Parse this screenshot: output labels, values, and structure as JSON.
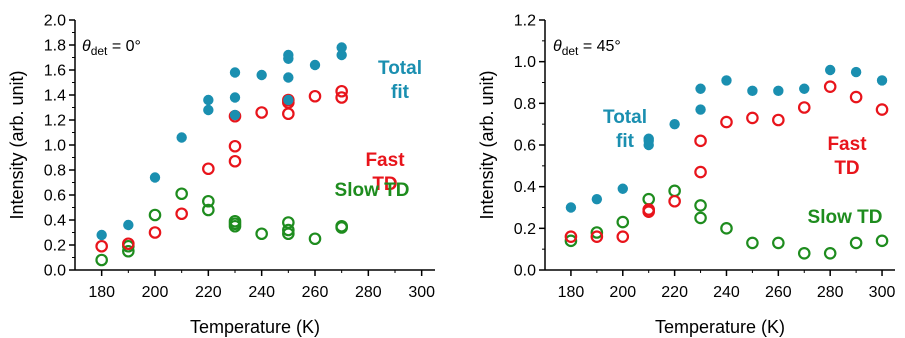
{
  "chart_data": [
    {
      "type": "scatter",
      "annotation": {
        "theta": "θ",
        "sub": "det",
        "rest": " = 0°"
      },
      "xlabel": "Temperature (K)",
      "ylabel": "Intensity (arb. unit)",
      "xlim": [
        170,
        305
      ],
      "ylim": [
        0,
        2.0
      ],
      "xticks": [
        "180",
        "200",
        "220",
        "240",
        "260",
        "280",
        "300"
      ],
      "yticks": [
        "0.0",
        "0.2",
        "0.4",
        "0.6",
        "0.8",
        "1.0",
        "1.2",
        "1.4",
        "1.6",
        "1.8",
        "2.0"
      ],
      "series": [
        {
          "name": "Total fit",
          "label_lines": [
            "Total",
            "fit"
          ],
          "color": "#1a8fb0",
          "marker": "filled",
          "x": [
            180,
            190,
            200,
            210,
            220,
            220,
            230,
            230,
            230,
            240,
            250,
            250,
            250,
            250,
            260,
            270,
            270
          ],
          "y": [
            0.28,
            0.36,
            0.74,
            1.06,
            1.36,
            1.28,
            1.58,
            1.38,
            1.24,
            1.56,
            1.72,
            1.69,
            1.54,
            1.36,
            1.64,
            1.78,
            1.72
          ]
        },
        {
          "name": "Fast TD",
          "label_lines": [
            "Fast",
            "TD"
          ],
          "color": "#e8141b",
          "marker": "open",
          "x": [
            180,
            190,
            200,
            210,
            220,
            230,
            230,
            230,
            240,
            250,
            250,
            250,
            260,
            270,
            270
          ],
          "y": [
            0.19,
            0.21,
            0.3,
            0.45,
            0.81,
            1.23,
            0.99,
            0.87,
            1.26,
            1.36,
            1.34,
            1.25,
            1.39,
            1.43,
            1.38
          ]
        },
        {
          "name": "Slow TD",
          "label_lines": [
            "Slow TD"
          ],
          "color": "#1e8c1e",
          "marker": "open",
          "x": [
            180,
            190,
            190,
            200,
            210,
            220,
            220,
            230,
            230,
            230,
            240,
            250,
            250,
            250,
            260,
            270,
            270
          ],
          "y": [
            0.08,
            0.15,
            0.19,
            0.44,
            0.61,
            0.55,
            0.48,
            0.39,
            0.37,
            0.35,
            0.29,
            0.38,
            0.32,
            0.29,
            0.25,
            0.35,
            0.34
          ]
        }
      ]
    },
    {
      "type": "scatter",
      "annotation": {
        "theta": "θ",
        "sub": "det",
        "rest": " = 45°"
      },
      "xlabel": "Temperature (K)",
      "ylabel": "Intensity (arb. unit)",
      "xlim": [
        170,
        305
      ],
      "ylim": [
        0,
        1.2
      ],
      "xticks": [
        "180",
        "200",
        "220",
        "240",
        "260",
        "280",
        "300"
      ],
      "yticks": [
        "0.0",
        "0.2",
        "0.4",
        "0.6",
        "0.8",
        "1.0",
        "1.2"
      ],
      "series": [
        {
          "name": "Total fit",
          "label_lines": [
            "Total",
            "fit"
          ],
          "color": "#1a8fb0",
          "marker": "filled",
          "x": [
            180,
            190,
            200,
            210,
            210,
            210,
            220,
            230,
            230,
            240,
            250,
            260,
            270,
            280,
            290,
            300
          ],
          "y": [
            0.3,
            0.34,
            0.39,
            0.63,
            0.62,
            0.6,
            0.7,
            0.87,
            0.77,
            0.91,
            0.86,
            0.86,
            0.87,
            0.96,
            0.95,
            0.91
          ]
        },
        {
          "name": "Fast TD",
          "label_lines": [
            "Fast",
            "TD"
          ],
          "color": "#e8141b",
          "marker": "open",
          "x": [
            180,
            190,
            200,
            210,
            210,
            220,
            230,
            230,
            240,
            250,
            260,
            270,
            280,
            290,
            300
          ],
          "y": [
            0.16,
            0.16,
            0.16,
            0.29,
            0.28,
            0.33,
            0.62,
            0.47,
            0.71,
            0.73,
            0.72,
            0.78,
            0.88,
            0.83,
            0.77
          ]
        },
        {
          "name": "Slow TD",
          "label_lines": [
            "Slow TD"
          ],
          "color": "#1e8c1e",
          "marker": "open",
          "x": [
            180,
            190,
            200,
            210,
            220,
            230,
            230,
            240,
            250,
            260,
            270,
            280,
            290,
            300
          ],
          "y": [
            0.14,
            0.18,
            0.23,
            0.34,
            0.38,
            0.31,
            0.25,
            0.2,
            0.13,
            0.13,
            0.08,
            0.08,
            0.13,
            0.14
          ]
        }
      ]
    }
  ]
}
